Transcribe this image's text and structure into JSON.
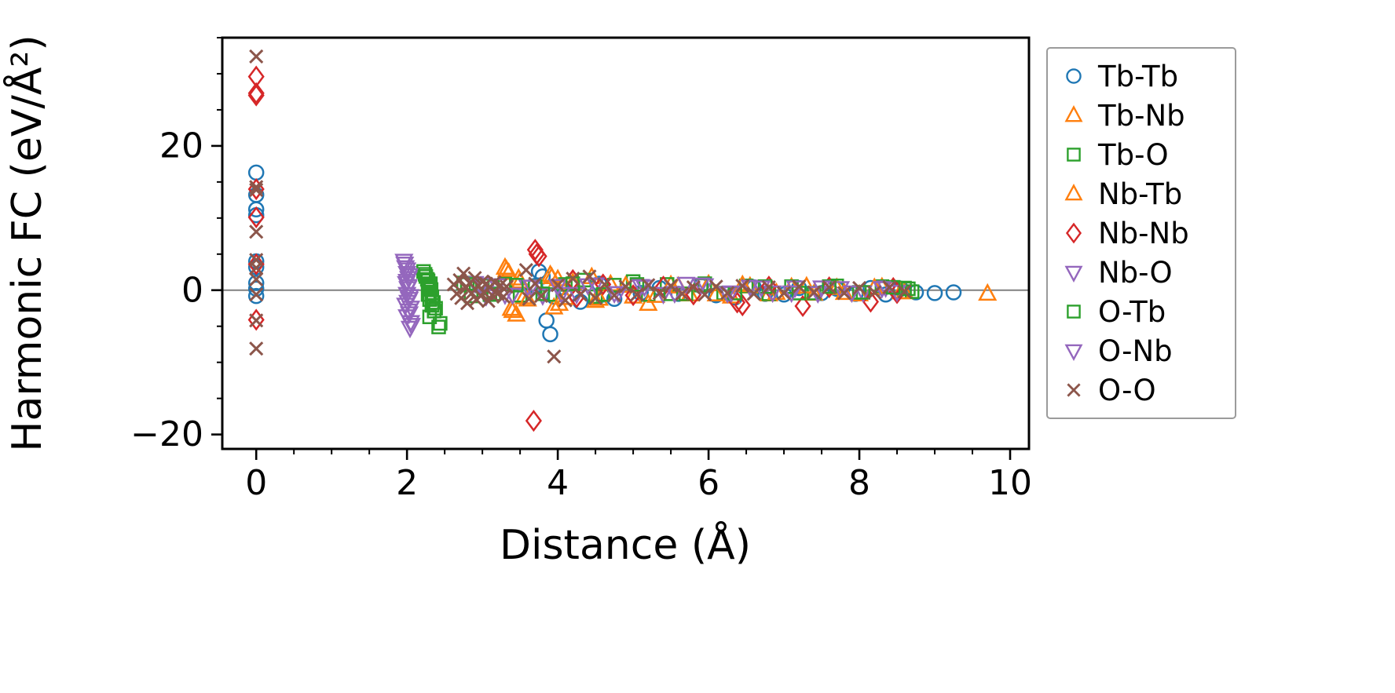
{
  "chart_data": {
    "type": "scatter",
    "title": "",
    "xlabel": "Distance (Å)",
    "ylabel": "Harmonic FC (eV/Å²)",
    "xlim": [
      -0.45,
      10.25
    ],
    "ylim": [
      -22,
      35
    ],
    "xticks": [
      0,
      2,
      4,
      6,
      8,
      10
    ],
    "yticks": [
      -20,
      0,
      20
    ],
    "x_minor_step": 0.5,
    "y_minor_step": 5,
    "grid": false,
    "zero_line": true,
    "zero_line_color": "#808080",
    "frame_color": "#000000",
    "legend_position": "outside-right",
    "series": [
      {
        "name": "Tb-Tb",
        "marker": "circle",
        "color": "#1f77b4",
        "points": [
          [
            0,
            16.3
          ],
          [
            0,
            13.2
          ],
          [
            0,
            11.2
          ],
          [
            0,
            10.4
          ],
          [
            0,
            4.0
          ],
          [
            0,
            3.2
          ],
          [
            0,
            1.0
          ],
          [
            0,
            0.2
          ],
          [
            0,
            -0.8
          ],
          [
            3.7,
            0.6
          ],
          [
            3.75,
            2.6
          ],
          [
            3.8,
            1.9
          ],
          [
            3.85,
            -4.2
          ],
          [
            3.9,
            -6.1
          ],
          [
            3.95,
            -0.9
          ],
          [
            4.05,
            0.4
          ],
          [
            4.3,
            -1.6
          ],
          [
            4.55,
            0.9
          ],
          [
            4.6,
            -0.6
          ],
          [
            4.75,
            -1.2
          ],
          [
            5.1,
            -0.4
          ],
          [
            5.35,
            0.3
          ],
          [
            5.6,
            -0.5
          ],
          [
            5.9,
            0.6
          ],
          [
            6.1,
            -0.7
          ],
          [
            6.35,
            -1.0
          ],
          [
            6.6,
            0.4
          ],
          [
            6.75,
            -0.5
          ],
          [
            7.0,
            -0.6
          ],
          [
            7.2,
            0.3
          ],
          [
            7.5,
            -0.4
          ],
          [
            7.7,
            0.2
          ],
          [
            7.95,
            -0.5
          ],
          [
            8.15,
            0.3
          ],
          [
            8.35,
            -0.6
          ],
          [
            8.55,
            0.2
          ],
          [
            8.75,
            -0.3
          ],
          [
            9.0,
            -0.4
          ],
          [
            9.25,
            -0.3
          ]
        ]
      },
      {
        "name": "Tb-Nb",
        "marker": "triangle-up",
        "color": "#ff7f0e",
        "points": [
          [
            3.3,
            3.1
          ],
          [
            3.35,
            2.4
          ],
          [
            3.4,
            -2.9
          ],
          [
            3.45,
            -3.4
          ],
          [
            3.5,
            1.2
          ],
          [
            3.55,
            -1.0
          ],
          [
            3.9,
            2.1
          ],
          [
            3.95,
            -2.4
          ],
          [
            4.0,
            1.5
          ],
          [
            4.1,
            -1.1
          ],
          [
            4.45,
            1.8
          ],
          [
            4.5,
            -1.5
          ],
          [
            4.7,
            0.8
          ],
          [
            5.0,
            -0.9
          ],
          [
            5.2,
            -1.9
          ],
          [
            5.5,
            0.7
          ],
          [
            5.75,
            -0.6
          ],
          [
            6.0,
            0.8
          ],
          [
            6.3,
            -0.9
          ],
          [
            6.55,
            0.5
          ],
          [
            6.8,
            -0.6
          ],
          [
            7.1,
            0.4
          ],
          [
            7.4,
            -0.5
          ],
          [
            7.7,
            0.3
          ],
          [
            8.0,
            -0.6
          ],
          [
            8.3,
            0.4
          ],
          [
            8.6,
            -0.3
          ],
          [
            9.7,
            -0.5
          ]
        ]
      },
      {
        "name": "Tb-O",
        "marker": "square",
        "color": "#2ca02c",
        "points": [
          [
            2.22,
            2.6
          ],
          [
            2.25,
            1.9
          ],
          [
            2.28,
            1.3
          ],
          [
            2.3,
            0.7
          ],
          [
            2.32,
            0.1
          ],
          [
            2.28,
            -0.6
          ],
          [
            2.3,
            -1.3
          ],
          [
            2.33,
            -2.1
          ],
          [
            2.36,
            -2.9
          ],
          [
            2.3,
            -3.7
          ],
          [
            2.42,
            -5.1
          ],
          [
            2.75,
            1.0
          ],
          [
            2.85,
            -0.8
          ],
          [
            3.0,
            0.6
          ],
          [
            3.15,
            -0.5
          ],
          [
            3.3,
            0.9
          ],
          [
            3.5,
            -0.7
          ],
          [
            3.7,
            0.5
          ],
          [
            3.9,
            -0.6
          ],
          [
            4.1,
            0.8
          ],
          [
            4.35,
            1.4
          ],
          [
            4.5,
            -0.9
          ],
          [
            4.75,
            0.7
          ],
          [
            5.0,
            1.2
          ],
          [
            5.2,
            -0.6
          ],
          [
            5.45,
            0.8
          ],
          [
            5.7,
            -0.5
          ],
          [
            5.95,
            0.9
          ],
          [
            6.2,
            -0.4
          ],
          [
            6.5,
            0.6
          ],
          [
            6.8,
            -0.5
          ],
          [
            7.1,
            0.5
          ],
          [
            7.4,
            -0.4
          ],
          [
            7.7,
            0.6
          ],
          [
            8.0,
            -0.3
          ],
          [
            8.3,
            0.5
          ],
          [
            8.6,
            0.3
          ],
          [
            8.7,
            -0.2
          ]
        ]
      },
      {
        "name": "Nb-Tb",
        "marker": "triangle-up",
        "color": "#ff7f0e",
        "points": [
          [
            3.32,
            2.8
          ],
          [
            3.38,
            -2.6
          ],
          [
            3.48,
            1.6
          ],
          [
            3.6,
            -1.3
          ],
          [
            3.92,
            1.8
          ],
          [
            4.02,
            -1.9
          ],
          [
            4.2,
            1.0
          ],
          [
            4.55,
            -1.2
          ],
          [
            4.9,
            0.6
          ],
          [
            5.3,
            -0.8
          ],
          [
            5.6,
            0.5
          ],
          [
            6.1,
            -0.6
          ],
          [
            6.45,
            0.7
          ],
          [
            6.9,
            -0.4
          ],
          [
            7.3,
            0.5
          ],
          [
            7.8,
            -0.4
          ],
          [
            8.2,
            0.3
          ],
          [
            8.55,
            -0.3
          ]
        ]
      },
      {
        "name": "Nb-Nb",
        "marker": "diamond",
        "color": "#d62728",
        "points": [
          [
            0,
            29.6
          ],
          [
            0,
            27.3
          ],
          [
            0,
            27.0
          ],
          [
            0,
            14.0
          ],
          [
            0,
            10.1
          ],
          [
            0,
            3.6
          ],
          [
            0,
            -4.1
          ],
          [
            3.7,
            5.6
          ],
          [
            3.72,
            5.0
          ],
          [
            3.75,
            4.7
          ],
          [
            3.68,
            -18.1
          ],
          [
            4.2,
            1.4
          ],
          [
            4.25,
            -1.0
          ],
          [
            4.6,
            0.8
          ],
          [
            5.0,
            -0.7
          ],
          [
            5.4,
            0.5
          ],
          [
            5.8,
            -0.6
          ],
          [
            6.38,
            -1.7
          ],
          [
            6.45,
            -2.1
          ],
          [
            6.8,
            0.5
          ],
          [
            7.25,
            -2.2
          ],
          [
            7.6,
            0.4
          ],
          [
            8.15,
            -1.6
          ],
          [
            8.45,
            0.3
          ],
          [
            8.5,
            -0.4
          ]
        ]
      },
      {
        "name": "Nb-O",
        "marker": "triangle-down",
        "color": "#9467bd",
        "points": [
          [
            1.96,
            4.1
          ],
          [
            1.98,
            3.2
          ],
          [
            2.0,
            2.4
          ],
          [
            2.02,
            1.7
          ],
          [
            1.99,
            1.0
          ],
          [
            2.01,
            0.3
          ],
          [
            2.0,
            -0.5
          ],
          [
            2.03,
            -1.2
          ],
          [
            1.98,
            -2.0
          ],
          [
            2.02,
            -2.8
          ],
          [
            2.0,
            -3.6
          ],
          [
            2.05,
            -4.4
          ],
          [
            2.04,
            -5.2
          ],
          [
            2.9,
            1.0
          ],
          [
            3.05,
            -0.8
          ],
          [
            3.2,
            0.7
          ],
          [
            3.4,
            -0.6
          ],
          [
            3.6,
            0.5
          ],
          [
            3.8,
            -0.7
          ],
          [
            4.0,
            0.6
          ],
          [
            4.25,
            -0.5
          ],
          [
            4.5,
            0.8
          ],
          [
            4.8,
            -0.4
          ],
          [
            5.1,
            0.6
          ],
          [
            5.4,
            -0.5
          ],
          [
            5.7,
            0.9
          ],
          [
            5.95,
            0.7
          ],
          [
            6.25,
            -0.4
          ],
          [
            6.55,
            0.5
          ],
          [
            6.85,
            -0.3
          ],
          [
            7.15,
            0.4
          ],
          [
            7.45,
            -0.4
          ],
          [
            7.75,
            0.3
          ],
          [
            8.05,
            -0.3
          ],
          [
            8.35,
            0.4
          ],
          [
            8.5,
            -0.2
          ]
        ]
      },
      {
        "name": "O-Tb",
        "marker": "square",
        "color": "#2ca02c",
        "points": [
          [
            2.24,
            2.2
          ],
          [
            2.27,
            1.5
          ],
          [
            2.31,
            0.9
          ],
          [
            2.29,
            0.3
          ],
          [
            2.33,
            -0.9
          ],
          [
            2.35,
            -1.7
          ],
          [
            2.38,
            -2.5
          ],
          [
            2.44,
            -4.6
          ],
          [
            2.8,
            0.8
          ],
          [
            3.1,
            -0.6
          ],
          [
            3.45,
            0.7
          ],
          [
            3.8,
            -0.5
          ],
          [
            4.2,
            0.9
          ],
          [
            4.6,
            -0.6
          ],
          [
            5.05,
            0.8
          ],
          [
            5.5,
            -0.5
          ],
          [
            5.9,
            0.7
          ],
          [
            6.35,
            -0.4
          ],
          [
            6.75,
            0.5
          ],
          [
            7.2,
            -0.4
          ],
          [
            7.6,
            0.5
          ],
          [
            8.05,
            -0.3
          ],
          [
            8.45,
            0.4
          ],
          [
            8.65,
            0.2
          ]
        ]
      },
      {
        "name": "O-Nb",
        "marker": "triangle-down",
        "color": "#9467bd",
        "points": [
          [
            1.97,
            3.7
          ],
          [
            2.0,
            2.9
          ],
          [
            2.03,
            2.1
          ],
          [
            2.0,
            1.3
          ],
          [
            2.02,
            0.6
          ],
          [
            2.04,
            -0.8
          ],
          [
            2.01,
            -1.6
          ],
          [
            2.05,
            -2.4
          ],
          [
            2.03,
            -3.2
          ],
          [
            2.06,
            -4.8
          ],
          [
            3.0,
            0.8
          ],
          [
            3.3,
            -0.6
          ],
          [
            3.65,
            0.5
          ],
          [
            4.05,
            -0.5
          ],
          [
            4.4,
            0.7
          ],
          [
            4.75,
            -0.4
          ],
          [
            5.15,
            0.5
          ],
          [
            5.55,
            -0.4
          ],
          [
            5.9,
            0.8
          ],
          [
            6.3,
            -0.3
          ],
          [
            6.7,
            0.4
          ],
          [
            7.1,
            -0.3
          ],
          [
            7.5,
            0.4
          ],
          [
            7.9,
            -0.3
          ],
          [
            8.3,
            0.3
          ]
        ]
      },
      {
        "name": "O-O",
        "marker": "x",
        "color": "#8c564b",
        "points": [
          [
            0,
            32.4
          ],
          [
            0,
            14.3
          ],
          [
            0,
            13.9
          ],
          [
            0,
            8.1
          ],
          [
            0,
            4.2
          ],
          [
            0,
            3.1
          ],
          [
            0,
            1.5
          ],
          [
            0,
            -0.6
          ],
          [
            0,
            -4.2
          ],
          [
            0,
            -8.1
          ],
          [
            2.62,
            0.8
          ],
          [
            2.66,
            -0.5
          ],
          [
            2.7,
            1.4
          ],
          [
            2.72,
            -1.1
          ],
          [
            2.75,
            2.3
          ],
          [
            2.78,
            0.3
          ],
          [
            2.8,
            -1.8
          ],
          [
            2.83,
            1.0
          ],
          [
            2.86,
            -0.4
          ],
          [
            2.9,
            1.7
          ],
          [
            2.92,
            -1.3
          ],
          [
            2.95,
            0.6
          ],
          [
            2.98,
            -0.8
          ],
          [
            3.0,
            1.2
          ],
          [
            3.02,
            -0.3
          ],
          [
            3.05,
            0.9
          ],
          [
            3.08,
            -1.5
          ],
          [
            3.1,
            0.4
          ],
          [
            3.13,
            -0.7
          ],
          [
            3.16,
            1.1
          ],
          [
            3.2,
            -0.5
          ],
          [
            3.24,
            0.7
          ],
          [
            3.28,
            -0.9
          ],
          [
            3.32,
            0.5
          ],
          [
            3.58,
            2.8
          ],
          [
            3.62,
            -1.2
          ],
          [
            3.7,
            0.9
          ],
          [
            3.78,
            -0.8
          ],
          [
            3.95,
            -9.2
          ],
          [
            4.0,
            0.7
          ],
          [
            4.1,
            -1.4
          ],
          [
            4.2,
            1.6
          ],
          [
            4.3,
            -0.6
          ],
          [
            4.42,
            1.9
          ],
          [
            4.5,
            -1.1
          ],
          [
            4.62,
            0.8
          ],
          [
            4.75,
            -0.7
          ],
          [
            4.9,
            0.5
          ],
          [
            5.05,
            -0.6
          ],
          [
            5.2,
            0.7
          ],
          [
            5.35,
            -0.4
          ],
          [
            5.5,
            0.6
          ],
          [
            5.65,
            -0.5
          ],
          [
            5.8,
            0.4
          ],
          [
            5.95,
            -0.6
          ],
          [
            6.1,
            0.5
          ],
          [
            6.25,
            -0.4
          ],
          [
            6.45,
            0.6
          ],
          [
            6.6,
            -0.5
          ],
          [
            6.8,
            0.4
          ],
          [
            7.0,
            -0.4
          ],
          [
            7.2,
            0.5
          ],
          [
            7.4,
            -0.3
          ],
          [
            7.6,
            0.4
          ],
          [
            7.8,
            -0.4
          ],
          [
            8.0,
            0.3
          ],
          [
            8.2,
            -0.3
          ],
          [
            8.4,
            0.4
          ],
          [
            8.6,
            -0.2
          ]
        ]
      }
    ]
  }
}
